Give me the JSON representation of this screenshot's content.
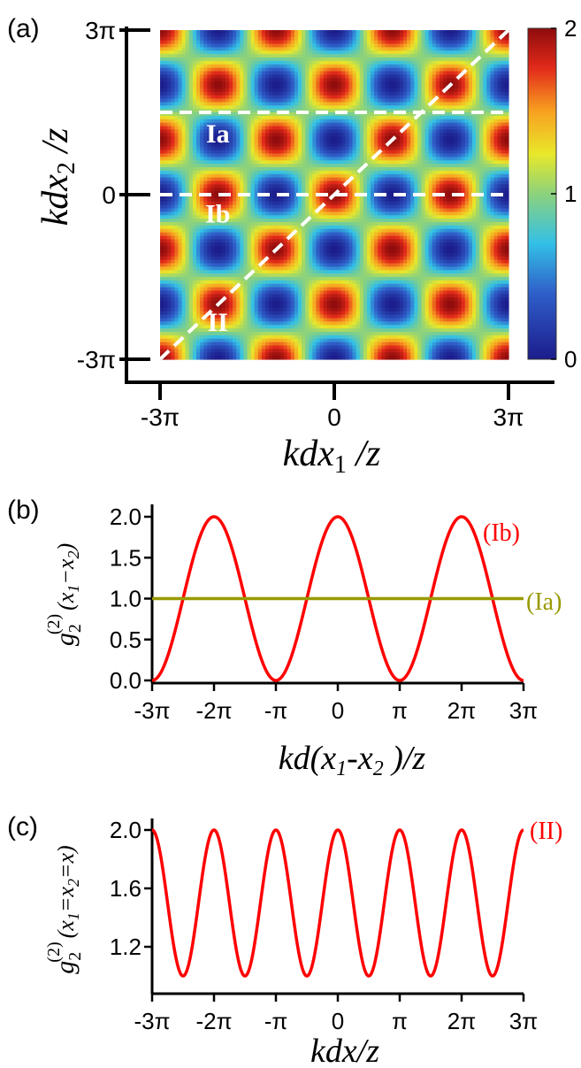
{
  "panels": {
    "a": {
      "tag": "(a)",
      "region_labels": [
        "Ia",
        "Ib",
        "II"
      ]
    },
    "b": {
      "tag": "(b)"
    },
    "c": {
      "tag": "(c)"
    }
  },
  "chart_data": [
    {
      "id": "a",
      "type": "heatmap",
      "function": "1 + cos(a)·cos(b), a = kdx1/z, b = kdx2/z",
      "xlabel_parts": [
        "kdx",
        "1",
        " /z"
      ],
      "ylabel_parts": [
        "kdx",
        "2",
        " /z"
      ],
      "xlim": [
        -9.42478,
        9.42478
      ],
      "ylim": [
        -9.42478,
        9.42478
      ],
      "xticks": [
        {
          "value": -9.42478,
          "label": "-3π"
        },
        {
          "value": 0,
          "label": "0"
        },
        {
          "value": 9.42478,
          "label": "3π"
        }
      ],
      "yticks": [
        {
          "value": -9.42478,
          "label": "-3π"
        },
        {
          "value": 0,
          "label": "0"
        },
        {
          "value": 9.42478,
          "label": "3π"
        }
      ],
      "colorbar": {
        "min": 0,
        "max": 2,
        "ticks": [
          {
            "value": 0,
            "label": "0"
          },
          {
            "value": 1,
            "label": "1"
          },
          {
            "value": 2,
            "label": "2"
          }
        ]
      },
      "dashed_lines": [
        {
          "name": "Ia",
          "kind": "horizontal",
          "y": 4.71239
        },
        {
          "name": "Ib",
          "kind": "horizontal",
          "y": 0
        },
        {
          "name": "II",
          "kind": "diagonal",
          "from": [
            -9.42478,
            -9.42478
          ],
          "to": [
            9.42478,
            9.42478
          ]
        }
      ],
      "region_labels": [
        {
          "text": "Ia",
          "x": -6.3,
          "y": 3.0
        },
        {
          "text": "Ib",
          "x": -6.3,
          "y": -1.6
        },
        {
          "text": "II",
          "x": -6.3,
          "y": -7.8
        }
      ]
    },
    {
      "id": "b",
      "type": "line",
      "xlabel_parts": [
        "kd(x",
        "1",
        "-x",
        "2",
        " )/z"
      ],
      "ylabel": {
        "g": "g",
        "sub": "2",
        "sup": "(2)",
        "arg_parts": [
          "(x",
          "1",
          "−x",
          "2",
          ")"
        ]
      },
      "xlim": [
        -9.42478,
        9.42478
      ],
      "ylim": [
        0,
        2.0
      ],
      "xticks": [
        {
          "value": -9.42478,
          "label": "-3π"
        },
        {
          "value": -6.28319,
          "label": "-2π"
        },
        {
          "value": -3.14159,
          "label": "-π"
        },
        {
          "value": 0,
          "label": "0"
        },
        {
          "value": 3.14159,
          "label": "π"
        },
        {
          "value": 6.28319,
          "label": "2π"
        },
        {
          "value": 9.42478,
          "label": "3π"
        }
      ],
      "yticks": [
        {
          "value": 0,
          "label": "0.0"
        },
        {
          "value": 0.5,
          "label": "0.5"
        },
        {
          "value": 1.0,
          "label": "1.0"
        },
        {
          "value": 1.5,
          "label": "1.5"
        },
        {
          "value": 2.0,
          "label": "2.0"
        }
      ],
      "series": [
        {
          "name": "(Ib)",
          "color": "#ff0000",
          "function": "1 + cos(x)",
          "x": [
            -9.42478,
            -7.85398,
            -6.28319,
            -4.71239,
            -3.14159,
            -1.5708,
            0,
            1.5708,
            3.14159,
            4.71239,
            6.28319,
            7.85398,
            9.42478
          ],
          "y": [
            0,
            1,
            2,
            1,
            0,
            1,
            2,
            1,
            0,
            1,
            2,
            1,
            0
          ]
        },
        {
          "name": "(Ia)",
          "color": "#999900",
          "function": "1",
          "x": [
            -9.42478,
            9.42478
          ],
          "y": [
            1,
            1
          ]
        }
      ]
    },
    {
      "id": "c",
      "type": "line",
      "xlabel": "kdx/z",
      "ylabel": {
        "g": "g",
        "sub": "2",
        "sup": "(2)",
        "arg_parts": [
          "(x",
          "1",
          "=x",
          "2",
          "=x)"
        ]
      },
      "xlim": [
        -9.42478,
        9.42478
      ],
      "ylim": [
        1.0,
        2.0
      ],
      "xticks": [
        {
          "value": -9.42478,
          "label": "-3π"
        },
        {
          "value": -6.28319,
          "label": "-2π"
        },
        {
          "value": -3.14159,
          "label": "-π"
        },
        {
          "value": 0,
          "label": "0"
        },
        {
          "value": 3.14159,
          "label": "π"
        },
        {
          "value": 6.28319,
          "label": "2π"
        },
        {
          "value": 9.42478,
          "label": "3π"
        }
      ],
      "yticks": [
        {
          "value": 1.2,
          "label": "1.2"
        },
        {
          "value": 1.6,
          "label": "1.6"
        },
        {
          "value": 2.0,
          "label": "2.0"
        }
      ],
      "series": [
        {
          "name": "(II)",
          "color": "#ff0000",
          "function": "1 + cos²(x)",
          "x": [
            -9.42478,
            -7.85398,
            -6.28319,
            -4.71239,
            -3.14159,
            -1.5708,
            0,
            1.5708,
            3.14159,
            4.71239,
            6.28319,
            7.85398,
            9.42478
          ],
          "y": [
            2,
            1,
            2,
            1,
            2,
            1,
            2,
            1,
            2,
            1,
            2,
            1,
            2
          ]
        }
      ]
    }
  ]
}
